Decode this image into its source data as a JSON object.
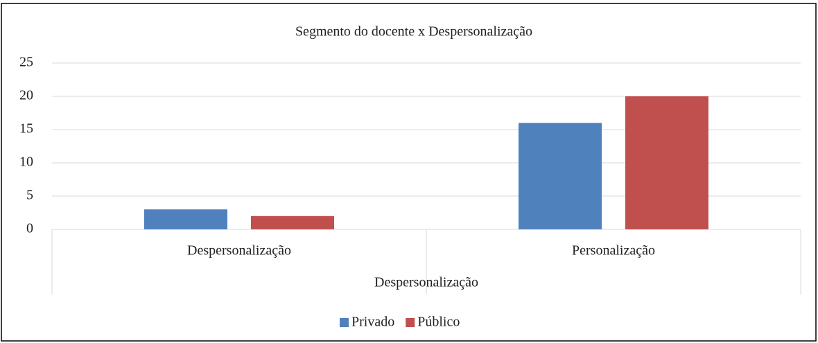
{
  "chart_data": {
    "type": "bar",
    "title": "Segmento do docente x Despersonalização",
    "x_label": "Despersonalização",
    "categories": [
      "Despersonalização",
      "Personalização"
    ],
    "series": [
      {
        "name": "Privado",
        "color": "#4f81bd",
        "values": [
          3,
          16
        ]
      },
      {
        "name": "Público",
        "color": "#c0504d",
        "values": [
          2,
          20
        ]
      }
    ],
    "ylim": [
      0,
      25
    ],
    "yticks": [
      0,
      5,
      10,
      15,
      20,
      25
    ],
    "grid": true,
    "legend": "bottom"
  }
}
